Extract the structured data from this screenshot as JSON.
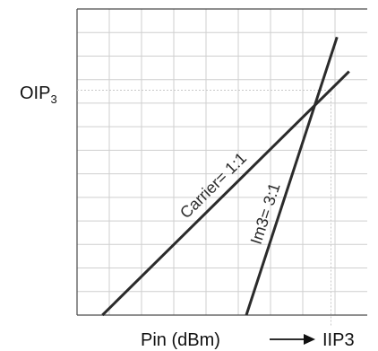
{
  "chart_data": {
    "type": "line",
    "title": "",
    "xlabel": "Pin (dBm)",
    "ylabel": "",
    "x_markers": [
      "IIP3"
    ],
    "y_markers": [
      "OIP3"
    ],
    "grid": true,
    "x_ticks": 9,
    "y_ticks": 13,
    "series": [
      {
        "name": "Carrier= 1:1",
        "slope_ratio": "1:1",
        "x": [
          0.84,
          9.0
        ],
        "y": [
          0.0,
          7.8
        ]
      },
      {
        "name": "Im3= 3:1",
        "slope_ratio": "3:1",
        "x": [
          5.6,
          8.6
        ],
        "y": [
          0.0,
          8.9
        ]
      }
    ],
    "intercept": {
      "x": 8.4,
      "y": 7.2
    },
    "xlim": [
      0,
      9.6
    ],
    "ylim": [
      0,
      9.8
    ],
    "colors": {
      "grid": "#cfcfcf",
      "axes": "#4a4a4a",
      "series": "#2b2b2b",
      "reference": "#c8c8c8"
    }
  }
}
